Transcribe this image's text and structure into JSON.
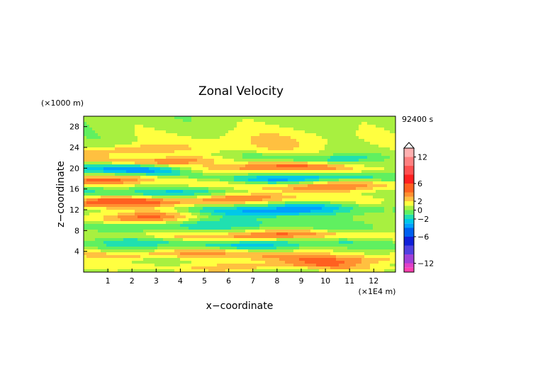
{
  "chart_data": {
    "type": "heatmap",
    "title": "Zonal Velocity",
    "xlabel": "x−coordinate",
    "ylabel": "z−coordinate",
    "x_unit": "(×1E4 m)",
    "y_unit": "(×1000 m)",
    "time_label": "92400 s",
    "xlim": [
      0,
      12.9
    ],
    "ylim": [
      0,
      30
    ],
    "x_ticks": [
      "1",
      "2",
      "3",
      "4",
      "5",
      "6",
      "7",
      "8",
      "9",
      "10",
      "11",
      "12"
    ],
    "y_ticks": [
      "4",
      "8",
      "12",
      "16",
      "20",
      "24",
      "28"
    ],
    "colorbar": {
      "range": [
        -14,
        14
      ],
      "labels": [
        "12",
        "6",
        "2",
        "0",
        "−2",
        "−6",
        "−12"
      ],
      "levels": [
        {
          "from": -14,
          "to": -13,
          "color": "#ff40b0"
        },
        {
          "from": -13,
          "to": -12,
          "color": "#e040c8"
        },
        {
          "from": -12,
          "to": -10,
          "color": "#a040d8"
        },
        {
          "from": -10,
          "to": -8,
          "color": "#5040e0"
        },
        {
          "from": -8,
          "to": -6,
          "color": "#1020d8"
        },
        {
          "from": -6,
          "to": -4,
          "color": "#0060f0"
        },
        {
          "from": -4,
          "to": -3,
          "color": "#00a0ff"
        },
        {
          "from": -3,
          "to": -2,
          "color": "#00c8e8"
        },
        {
          "from": -2,
          "to": -1,
          "color": "#20e0b0"
        },
        {
          "from": -1,
          "to": 0,
          "color": "#60f060"
        },
        {
          "from": 0,
          "to": 1,
          "color": "#a8f040"
        },
        {
          "from": 1,
          "to": 2,
          "color": "#ffff40"
        },
        {
          "from": 2,
          "to": 3,
          "color": "#ffc040"
        },
        {
          "from": 3,
          "to": 4,
          "color": "#ff9030"
        },
        {
          "from": 4,
          "to": 6,
          "color": "#ff6020"
        },
        {
          "from": 6,
          "to": 8,
          "color": "#ff2020"
        },
        {
          "from": 8,
          "to": 10,
          "color": "#ff5050"
        },
        {
          "from": 10,
          "to": 12,
          "color": "#ff8080"
        },
        {
          "from": 12,
          "to": 14,
          "color": "#ffb0b0"
        }
      ]
    },
    "bands": [
      {
        "z": 1.0,
        "w": 0.5,
        "v": 2.0,
        "cx": 7.0,
        "span": 14
      },
      {
        "z": 2.5,
        "w": 0.8,
        "v": 3.2,
        "cx": 10.0,
        "span": 8
      },
      {
        "z": 3.5,
        "w": 0.6,
        "v": 2.4,
        "cx": 4.0,
        "span": 10
      },
      {
        "z": 5.5,
        "w": 0.7,
        "v": -2.5,
        "cx": 6.0,
        "span": 14
      },
      {
        "z": 7.0,
        "w": 0.7,
        "v": 3.5,
        "cx": 7.5,
        "span": 10
      },
      {
        "z": 9.0,
        "w": 0.8,
        "v": -2.2,
        "cx": 5.0,
        "span": 12
      },
      {
        "z": 10.5,
        "w": 0.9,
        "v": 3.6,
        "cx": 2.5,
        "span": 6
      },
      {
        "z": 12.0,
        "w": 0.9,
        "v": -4.2,
        "cx": 7.5,
        "span": 8
      },
      {
        "z": 13.0,
        "w": 0.8,
        "v": 4.2,
        "cx": 1.0,
        "span": 6
      },
      {
        "z": 14.0,
        "w": 0.7,
        "v": 3.4,
        "cx": 6.0,
        "span": 10
      },
      {
        "z": 15.5,
        "w": 0.8,
        "v": -2.6,
        "cx": 3.0,
        "span": 12
      },
      {
        "z": 16.5,
        "w": 0.8,
        "v": 3.8,
        "cx": 9.0,
        "span": 10
      },
      {
        "z": 17.8,
        "w": 0.7,
        "v": 4.4,
        "cx": 1.5,
        "span": 8
      },
      {
        "z": 18.0,
        "w": 0.7,
        "v": -4.0,
        "cx": 7.5,
        "span": 10
      },
      {
        "z": 19.6,
        "w": 0.8,
        "v": -4.5,
        "cx": 2.0,
        "span": 6
      },
      {
        "z": 20.0,
        "w": 0.8,
        "v": 3.8,
        "cx": 8.0,
        "span": 8
      },
      {
        "z": 21.5,
        "w": 0.6,
        "v": 3.5,
        "cx": 2.5,
        "span": 6
      },
      {
        "z": 22.0,
        "w": 0.6,
        "v": -2.6,
        "cx": 9.0,
        "span": 6
      },
      {
        "z": 23.5,
        "w": 0.7,
        "v": 2.4,
        "cx": 1.0,
        "span": 6
      },
      {
        "z": 25.0,
        "w": 2.0,
        "v": 1.6,
        "cx": 7.5,
        "span": 8
      }
    ]
  }
}
